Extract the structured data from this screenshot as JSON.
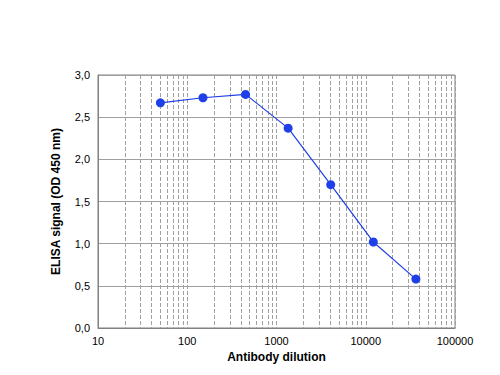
{
  "chart_data": {
    "type": "line",
    "x_label": "Antibody dilution",
    "y_label": "ELISA signal (OD 450 nm)",
    "x": [
      50,
      150,
      450,
      1350,
      4050,
      12150,
      36450
    ],
    "values": [
      2.67,
      2.73,
      2.77,
      2.37,
      1.7,
      1.02,
      0.58
    ],
    "color": "#1f3fe8",
    "marker": "circle",
    "log": "x",
    "grid": true,
    "xlim": [
      10,
      100000
    ],
    "xticks": [
      10,
      100,
      1000,
      10000,
      100000
    ],
    "ylim": [
      0,
      3
    ],
    "yticks": [
      {
        "value": 0,
        "label": "0,0"
      },
      {
        "value": 0.5,
        "label": "0,5"
      },
      {
        "value": 1,
        "label": "1,0"
      },
      {
        "value": 1.5,
        "label": "1,5"
      },
      {
        "value": 2,
        "label": "2,0"
      },
      {
        "value": 2.5,
        "label": "2,5"
      },
      {
        "value": 3,
        "label": "3,0"
      }
    ]
  }
}
